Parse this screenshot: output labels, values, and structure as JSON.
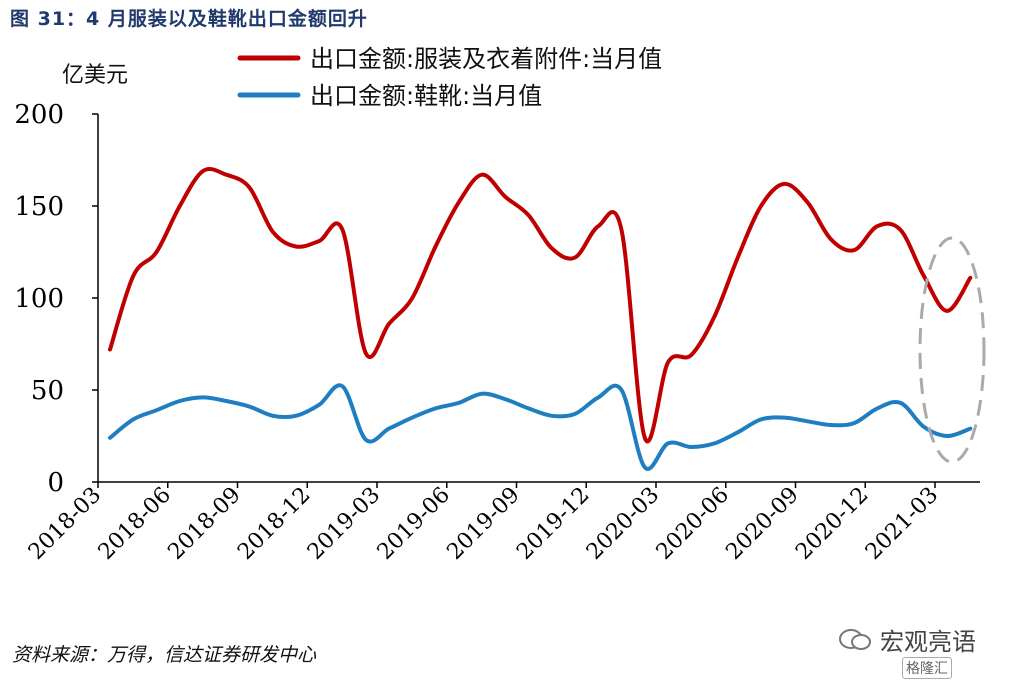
{
  "figure": {
    "title": "图 31：4 月服装以及鞋靴出口金额回升",
    "source": "资料来源：万得，信达证券研发中心",
    "watermark_main": "宏观亮语",
    "watermark_sub": "格隆汇"
  },
  "chart_data": {
    "type": "line",
    "title": "",
    "ylabel": "亿美元",
    "xlabel": "",
    "ylim": [
      0,
      200
    ],
    "yticks": [
      0,
      50,
      100,
      150,
      200
    ],
    "grid": false,
    "legend_position": "top",
    "x": [
      "2018-03",
      "2018-04",
      "2018-05",
      "2018-06",
      "2018-07",
      "2018-08",
      "2018-09",
      "2018-10",
      "2018-11",
      "2018-12",
      "2019-01",
      "2019-02",
      "2019-03",
      "2019-04",
      "2019-05",
      "2019-06",
      "2019-07",
      "2019-08",
      "2019-09",
      "2019-10",
      "2019-11",
      "2019-12",
      "2020-01",
      "2020-02",
      "2020-03",
      "2020-04",
      "2020-05",
      "2020-06",
      "2020-07",
      "2020-08",
      "2020-09",
      "2020-10",
      "2020-11",
      "2020-12",
      "2021-01",
      "2021-02",
      "2021-03",
      "2021-04"
    ],
    "xtick_labels": [
      "2018-03",
      "2018-06",
      "2018-09",
      "2018-12",
      "2019-03",
      "2019-06",
      "2019-09",
      "2019-12",
      "2020-03",
      "2020-06",
      "2020-09",
      "2020-12",
      "2021-03"
    ],
    "series": [
      {
        "name": "出口金额:服装及衣着附件:当月值",
        "color": "#c00000",
        "values": [
          72,
          112,
          125,
          150,
          169,
          167,
          160,
          136,
          128,
          131,
          137,
          70,
          86,
          100,
          128,
          152,
          167,
          155,
          145,
          127,
          122,
          139,
          137,
          24,
          65,
          69,
          90,
          122,
          150,
          162,
          152,
          132,
          126,
          139,
          137,
          112,
          93,
          111
        ]
      },
      {
        "name": "出口金额:鞋靴:当月值",
        "color": "#1f7ec2",
        "values": [
          24,
          34,
          39,
          44,
          46,
          44,
          41,
          36,
          36,
          42,
          52,
          23,
          29,
          35,
          40,
          43,
          48,
          45,
          40,
          36,
          37,
          46,
          50,
          8,
          21,
          19,
          21,
          27,
          34,
          35,
          33,
          31,
          32,
          40,
          43,
          30,
          25,
          29
        ]
      }
    ],
    "annotations": [
      {
        "type": "dashed-ellipse",
        "color": "#aaaaaa",
        "label": "highlight latest months (2021-03 to 2021-04)"
      }
    ]
  }
}
